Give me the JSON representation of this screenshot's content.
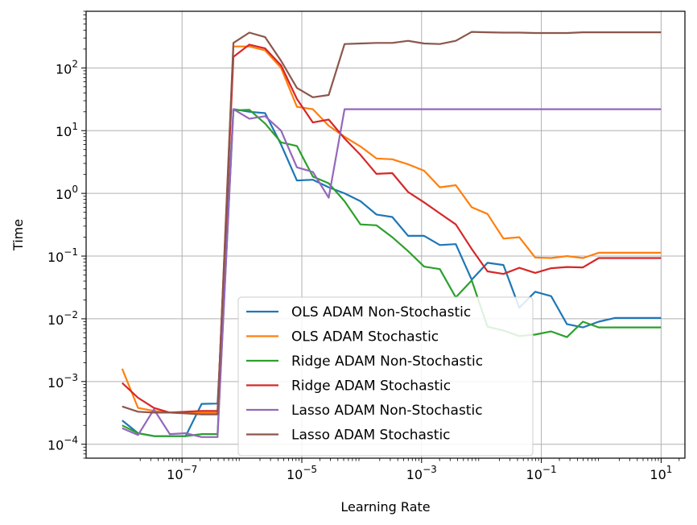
{
  "chart_data": {
    "type": "line",
    "xlabel": "Learning Rate",
    "ylabel": "Time",
    "xscale": "log",
    "yscale": "log",
    "xlim": [
      2.5e-09,
      25
    ],
    "ylim": [
      6e-05,
      800
    ],
    "grid": true,
    "legend_position": "bottom-center",
    "x_ticks": [
      {
        "value": 1e-07,
        "base": "10",
        "exp": "−7"
      },
      {
        "value": 1e-05,
        "base": "10",
        "exp": "−5"
      },
      {
        "value": 0.001,
        "base": "10",
        "exp": "−3"
      },
      {
        "value": 0.1,
        "base": "10",
        "exp": "−1"
      },
      {
        "value": 10,
        "base": "10",
        "exp": "1"
      }
    ],
    "y_ticks": [
      {
        "value": 0.0001,
        "base": "10",
        "exp": "−4"
      },
      {
        "value": 0.001,
        "base": "10",
        "exp": "−3"
      },
      {
        "value": 0.01,
        "base": "10",
        "exp": "−2"
      },
      {
        "value": 0.1,
        "base": "10",
        "exp": "−1"
      },
      {
        "value": 1,
        "base": "10",
        "exp": "0"
      },
      {
        "value": 10,
        "base": "10",
        "exp": "1"
      },
      {
        "value": 100,
        "base": "10",
        "exp": "2"
      }
    ],
    "x": [
      1e-08,
      1.84e-08,
      3.39e-08,
      6.25e-08,
      1.15e-07,
      2.12e-07,
      3.91e-07,
      7.2e-07,
      1.33e-06,
      2.44e-06,
      4.5e-06,
      8.29e-06,
      1.53e-05,
      2.81e-05,
      5.18e-05,
      9.54e-05,
      0.000176,
      0.000324,
      0.000596,
      0.0011,
      0.00202,
      0.00373,
      0.00687,
      0.0126,
      0.0233,
      0.0429,
      0.0791,
      0.146,
      0.268,
      0.494,
      0.91,
      1.68,
      3.09,
      5.69,
      10.0
    ],
    "series": [
      {
        "name": "OLS ADAM Non-Stochastic",
        "color": "#1f77b4",
        "values": [
          0.00024,
          0.00015,
          0.000135,
          0.000135,
          0.000135,
          0.00044,
          0.000445,
          22,
          20,
          19,
          6,
          1.6,
          1.65,
          1.25,
          1.0,
          0.75,
          0.46,
          0.42,
          0.21,
          0.21,
          0.15,
          0.155,
          0.042,
          0.078,
          0.072,
          0.015,
          0.027,
          0.023,
          0.0082,
          0.0073,
          0.009,
          0.0103,
          0.0103,
          0.0103,
          0.0103
        ]
      },
      {
        "name": "OLS ADAM Stochastic",
        "color": "#ff7f0e",
        "values": [
          0.0016,
          0.00038,
          0.00034,
          0.00032,
          0.00032,
          0.00032,
          0.00032,
          220,
          220,
          190,
          100,
          24,
          22,
          12,
          8,
          5.6,
          3.6,
          3.5,
          2.9,
          2.3,
          1.25,
          1.35,
          0.6,
          0.47,
          0.19,
          0.2,
          0.095,
          0.093,
          0.1,
          0.093,
          0.113,
          0.113,
          0.113,
          0.113,
          0.113
        ]
      },
      {
        "name": "Ridge ADAM Non-Stochastic",
        "color": "#2ca02c",
        "values": [
          0.0002,
          0.00015,
          0.000135,
          0.000135,
          0.000135,
          0.000145,
          0.000145,
          21,
          21.5,
          13,
          6.5,
          5.7,
          1.85,
          1.45,
          0.75,
          0.32,
          0.31,
          0.2,
          0.12,
          0.068,
          0.062,
          0.022,
          0.041,
          0.0075,
          0.0065,
          0.0053,
          0.0056,
          0.0063,
          0.0051,
          0.009,
          0.0073,
          0.0073,
          0.0073,
          0.0073,
          0.0073
        ]
      },
      {
        "name": "Ridge ADAM Stochastic",
        "color": "#d62728",
        "values": [
          0.00095,
          0.00055,
          0.00038,
          0.00032,
          0.00033,
          0.00034,
          0.00034,
          150,
          235,
          205,
          110,
          32,
          13.5,
          15,
          7.5,
          4.1,
          2.05,
          2.1,
          1.05,
          0.72,
          0.48,
          0.32,
          0.13,
          0.057,
          0.052,
          0.065,
          0.054,
          0.064,
          0.067,
          0.066,
          0.093,
          0.093,
          0.093,
          0.093,
          0.093
        ]
      },
      {
        "name": "Lasso ADAM Non-Stochastic",
        "color": "#9467bd",
        "values": [
          0.00018,
          0.00014,
          0.00036,
          0.000145,
          0.00015,
          0.00013,
          0.00013,
          22,
          15.5,
          17,
          10,
          2.6,
          2.2,
          0.85,
          22,
          22,
          22,
          22,
          22,
          22,
          22,
          22,
          22,
          22,
          22,
          22,
          22,
          22,
          22,
          22,
          22,
          22,
          22,
          22,
          22
        ]
      },
      {
        "name": "Lasso ADAM Stochastic",
        "color": "#8c564b",
        "values": [
          0.0004,
          0.00033,
          0.00032,
          0.00032,
          0.00031,
          0.0003,
          0.0003,
          250,
          365,
          310,
          130,
          48,
          34,
          37,
          240,
          245,
          250,
          250,
          270,
          245,
          240,
          270,
          375,
          370,
          365,
          365,
          360,
          360,
          360,
          370,
          370,
          370,
          370,
          370,
          370
        ]
      }
    ]
  }
}
